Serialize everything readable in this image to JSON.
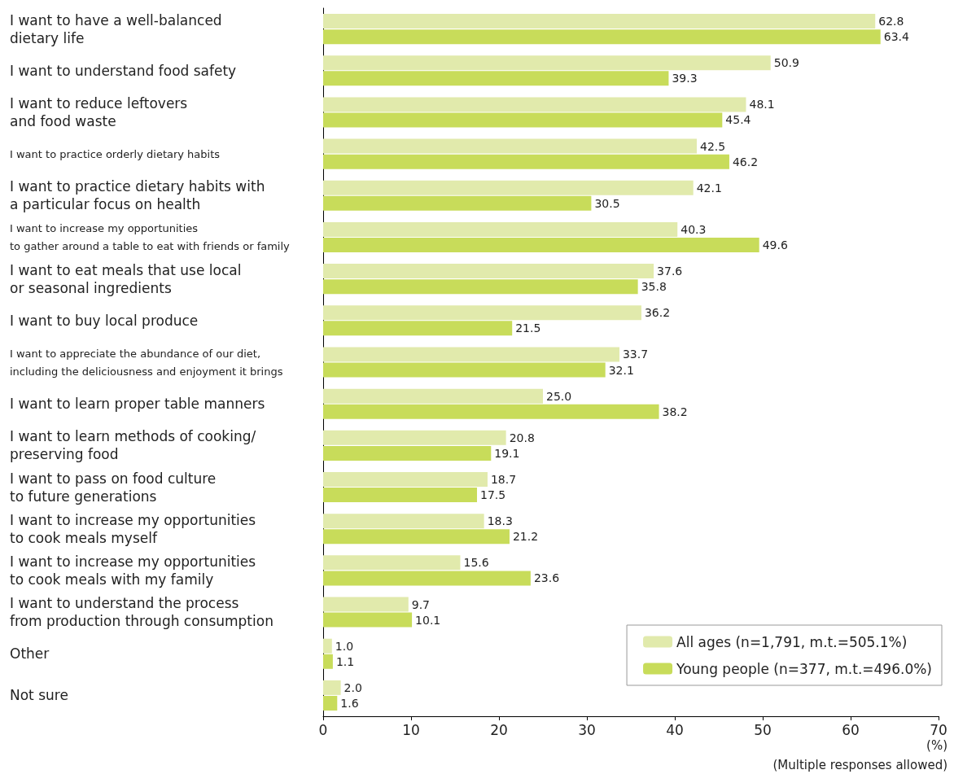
{
  "chart_data": {
    "type": "bar",
    "orientation": "horizontal",
    "categories": [
      "I want to have a well-balanced\ndietary life",
      "I want to understand food safety",
      "I want to reduce leftovers\nand food waste",
      "I want to practice orderly dietary habits",
      "I want to practice dietary habits with\na particular focus on health",
      "I want to increase my opportunities\nto gather around a table to eat with friends or family",
      "I want to eat meals that use local\nor seasonal ingredients",
      "I want to buy local produce",
      "I want to appreciate the abundance of our diet,\nincluding the deliciousness and enjoyment it brings",
      "I want to learn proper table manners",
      "I want to learn methods of cooking/\npreserving food",
      "I want to pass on food culture\nto future generations",
      "I want to increase my opportunities\nto cook meals myself",
      "I want to increase my opportunities\nto cook meals with my family",
      "I want to understand the process\nfrom production through consumption",
      "Other",
      "Not sure"
    ],
    "series": [
      {
        "name": "All ages (n=1,791, m.t.=505.1%)",
        "color": "#e1eaac",
        "values": [
          62.8,
          50.9,
          48.1,
          42.5,
          42.1,
          40.3,
          37.6,
          36.2,
          33.7,
          25.0,
          20.8,
          18.7,
          18.3,
          15.6,
          9.7,
          1.0,
          2.0
        ],
        "value_labels": [
          "62.8",
          "50.9",
          "48.1",
          "42.5",
          "42.1",
          "40.3",
          "37.6",
          "36.2",
          "33.7",
          "25.0",
          "20.8",
          "18.7",
          "18.3",
          "15.6",
          "9.7",
          "1.0",
          "2.0"
        ]
      },
      {
        "name": "Young people (n=377, m.t.=496.0%)",
        "color": "#c8dc5a",
        "values": [
          63.4,
          39.3,
          45.4,
          46.2,
          30.5,
          49.6,
          35.8,
          21.5,
          32.1,
          38.2,
          19.1,
          17.5,
          21.2,
          23.6,
          10.1,
          1.1,
          1.6
        ],
        "value_labels": [
          "63.4",
          "39.3",
          "45.4",
          "46.2",
          "30.5",
          "49.6",
          "35.8",
          "21.5",
          "32.1",
          "38.2",
          "19.1",
          "17.5",
          "21.2",
          "23.6",
          "10.1",
          "1.1",
          "1.6"
        ]
      }
    ],
    "xlim": [
      0,
      70
    ],
    "xticks": [
      0,
      10,
      20,
      30,
      40,
      50,
      60,
      70
    ],
    "xlabel": "(%)",
    "legend": "bottom right",
    "grid": false,
    "annotations": [
      "(Multiple responses allowed)"
    ]
  }
}
